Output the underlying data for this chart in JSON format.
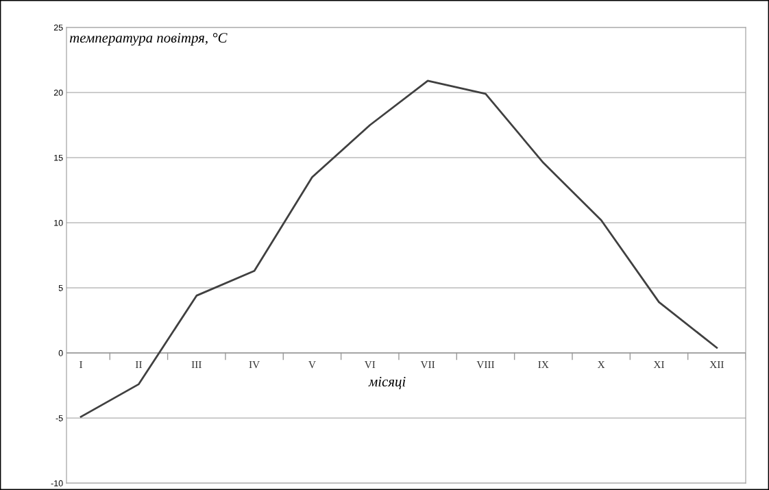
{
  "chart_data": {
    "type": "line",
    "xlabel": "місяці",
    "ylabel": "температура повітря, °C",
    "categories": [
      "I",
      "II",
      "III",
      "IV",
      "V",
      "VI",
      "VII",
      "VIII",
      "IX",
      "X",
      "XI",
      "XII"
    ],
    "series": [
      {
        "color": "#404040",
        "values": [
          -4.9,
          -2.4,
          4.4,
          6.3,
          13.5,
          17.5,
          20.9,
          19.9,
          14.6,
          10.2,
          3.9,
          0.4
        ]
      }
    ],
    "ylim": [
      -10,
      25
    ],
    "yticks": [
      -10,
      -5,
      0,
      5,
      10,
      15,
      20,
      25
    ],
    "grid": "y",
    "marker": "none",
    "line_style": "solid"
  }
}
